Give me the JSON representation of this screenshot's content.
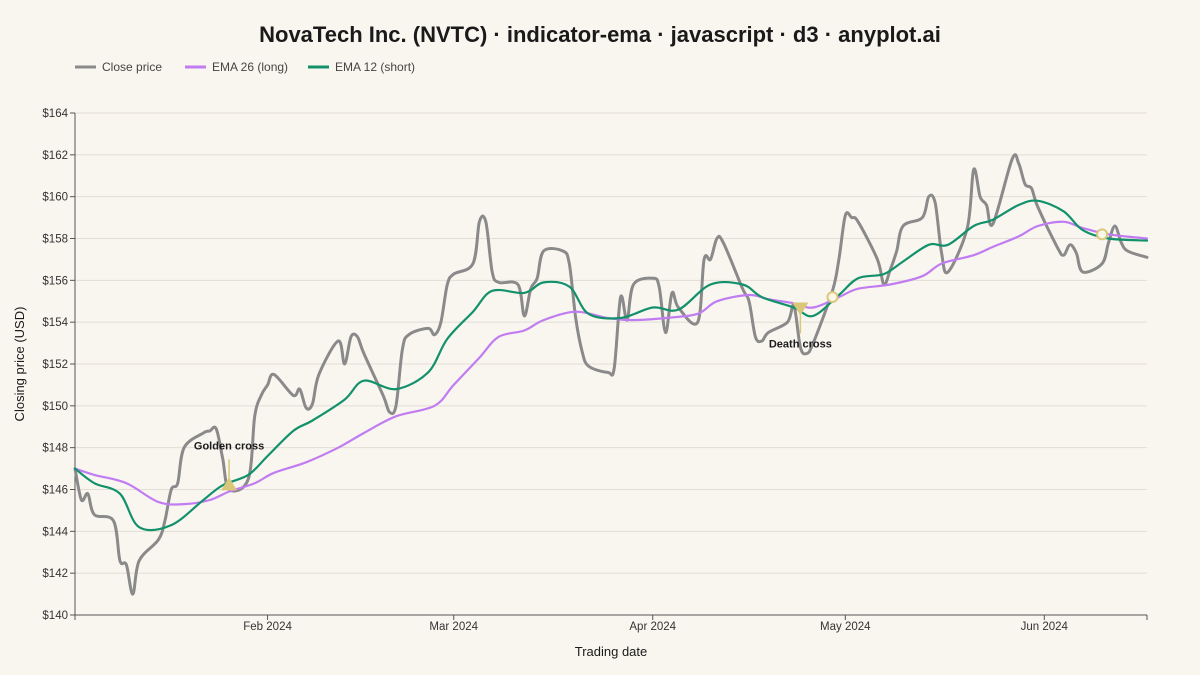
{
  "chart_data": {
    "type": "line",
    "title": "NovaTech Inc. (NVTC) · indicator-ema · javascript · d3 · anyplot.ai",
    "xlabel": "Trading date",
    "ylabel": "Closing price (USD)",
    "ylim": [
      140,
      164
    ],
    "y_ticks": [
      "$140",
      "$142",
      "$144",
      "$146",
      "$148",
      "$150",
      "$152",
      "$154",
      "$156",
      "$158",
      "$160",
      "$162",
      "$164"
    ],
    "x_ticks": [
      "Feb 2024",
      "Mar 2024",
      "Apr 2024",
      "May 2024",
      "Jun 2024"
    ],
    "xlim": [
      "2024-01-02",
      "2024-06-17"
    ],
    "grid": "horizontal",
    "legend_position": "top-left",
    "colors": {
      "close": "#8a8a8a",
      "ema26": "#c07cf0",
      "ema12": "#12916b",
      "marker": "#d9c77a"
    },
    "series": [
      {
        "name": "Close price",
        "key": "close",
        "points": [
          [
            "2024-01-02",
            147.0
          ],
          [
            "2024-01-03",
            145.5
          ],
          [
            "2024-01-04",
            145.8
          ],
          [
            "2024-01-05",
            144.8
          ],
          [
            "2024-01-08",
            144.5
          ],
          [
            "2024-01-09",
            142.6
          ],
          [
            "2024-01-10",
            142.4
          ],
          [
            "2024-01-11",
            141.0
          ],
          [
            "2024-01-12",
            142.6
          ],
          [
            "2024-01-15",
            143.6
          ],
          [
            "2024-01-16",
            144.5
          ],
          [
            "2024-01-17",
            146.0
          ],
          [
            "2024-01-18",
            146.3
          ],
          [
            "2024-01-19",
            148.0
          ],
          [
            "2024-01-22",
            148.7
          ],
          [
            "2024-01-23",
            148.8
          ],
          [
            "2024-01-24",
            148.9
          ],
          [
            "2024-01-25",
            147.5
          ],
          [
            "2024-01-26",
            146.0
          ],
          [
            "2024-01-29",
            146.5
          ],
          [
            "2024-01-30",
            149.5
          ],
          [
            "2024-01-31",
            150.5
          ],
          [
            "2024-02-01",
            151.0
          ],
          [
            "2024-02-02",
            151.5
          ],
          [
            "2024-02-05",
            150.5
          ],
          [
            "2024-02-06",
            150.8
          ],
          [
            "2024-02-07",
            149.9
          ],
          [
            "2024-02-08",
            150.1
          ],
          [
            "2024-02-09",
            151.5
          ],
          [
            "2024-02-12",
            153.1
          ],
          [
            "2024-02-13",
            152.0
          ],
          [
            "2024-02-14",
            153.3
          ],
          [
            "2024-02-15",
            153.3
          ],
          [
            "2024-02-16",
            152.5
          ],
          [
            "2024-02-19",
            150.5
          ],
          [
            "2024-02-20",
            149.7
          ],
          [
            "2024-02-21",
            150.0
          ],
          [
            "2024-02-22",
            152.7
          ],
          [
            "2024-02-23",
            153.4
          ],
          [
            "2024-02-26",
            153.7
          ],
          [
            "2024-02-27",
            153.4
          ],
          [
            "2024-02-28",
            154.0
          ],
          [
            "2024-02-29",
            155.8
          ],
          [
            "2024-03-01",
            156.3
          ],
          [
            "2024-03-04",
            156.8
          ],
          [
            "2024-03-05",
            158.8
          ],
          [
            "2024-03-06",
            158.8
          ],
          [
            "2024-03-07",
            156.4
          ],
          [
            "2024-03-08",
            155.9
          ],
          [
            "2024-03-11",
            155.8
          ],
          [
            "2024-03-12",
            154.3
          ],
          [
            "2024-03-13",
            155.6
          ],
          [
            "2024-03-14",
            156.1
          ],
          [
            "2024-03-15",
            157.4
          ],
          [
            "2024-03-18",
            157.4
          ],
          [
            "2024-03-19",
            156.8
          ],
          [
            "2024-03-20",
            154.2
          ],
          [
            "2024-03-21",
            152.6
          ],
          [
            "2024-03-22",
            151.9
          ],
          [
            "2024-03-25",
            151.6
          ],
          [
            "2024-03-26",
            151.8
          ],
          [
            "2024-03-27",
            155.2
          ],
          [
            "2024-03-28",
            154.1
          ],
          [
            "2024-03-29",
            155.8
          ],
          [
            "2024-04-01",
            156.1
          ],
          [
            "2024-04-02",
            155.7
          ],
          [
            "2024-04-03",
            153.5
          ],
          [
            "2024-04-04",
            155.4
          ],
          [
            "2024-04-05",
            154.7
          ],
          [
            "2024-04-08",
            154.0
          ],
          [
            "2024-04-09",
            157.0
          ],
          [
            "2024-04-10",
            157.0
          ],
          [
            "2024-04-11",
            158.0
          ],
          [
            "2024-04-12",
            157.8
          ],
          [
            "2024-04-15",
            155.6
          ],
          [
            "2024-04-16",
            155.0
          ],
          [
            "2024-04-17",
            153.3
          ],
          [
            "2024-04-18",
            153.1
          ],
          [
            "2024-04-19",
            153.5
          ],
          [
            "2024-04-22",
            154.0
          ],
          [
            "2024-04-23",
            154.8
          ],
          [
            "2024-04-24",
            152.8
          ],
          [
            "2024-04-25",
            152.5
          ],
          [
            "2024-04-26",
            153.0
          ],
          [
            "2024-04-29",
            155.5
          ],
          [
            "2024-04-30",
            157.0
          ],
          [
            "2024-05-01",
            159.1
          ],
          [
            "2024-05-02",
            159.0
          ],
          [
            "2024-05-03",
            158.8
          ],
          [
            "2024-05-06",
            157.0
          ],
          [
            "2024-05-07",
            155.8
          ],
          [
            "2024-05-08",
            156.5
          ],
          [
            "2024-05-09",
            157.4
          ],
          [
            "2024-05-10",
            158.6
          ],
          [
            "2024-05-13",
            159.0
          ],
          [
            "2024-05-14",
            160.0
          ],
          [
            "2024-05-15",
            159.7
          ],
          [
            "2024-05-16",
            157.3
          ],
          [
            "2024-05-17",
            156.4
          ],
          [
            "2024-05-20",
            158.5
          ],
          [
            "2024-05-21",
            161.3
          ],
          [
            "2024-05-22",
            160.0
          ],
          [
            "2024-05-23",
            159.6
          ],
          [
            "2024-05-24",
            158.7
          ],
          [
            "2024-05-27",
            161.8
          ],
          [
            "2024-05-28",
            161.6
          ],
          [
            "2024-05-29",
            160.6
          ],
          [
            "2024-05-30",
            160.4
          ],
          [
            "2024-05-31",
            159.5
          ],
          [
            "2024-06-03",
            157.6
          ],
          [
            "2024-06-04",
            157.2
          ],
          [
            "2024-06-05",
            157.7
          ],
          [
            "2024-06-06",
            157.3
          ],
          [
            "2024-06-07",
            156.4
          ],
          [
            "2024-06-10",
            156.8
          ],
          [
            "2024-06-11",
            157.8
          ],
          [
            "2024-06-12",
            158.6
          ],
          [
            "2024-06-13",
            157.8
          ],
          [
            "2024-06-14",
            157.4
          ],
          [
            "2024-06-17",
            157.1
          ]
        ]
      },
      {
        "name": "EMA 26 (long)",
        "key": "ema26",
        "points": [
          [
            "2024-01-02",
            147.0
          ],
          [
            "2024-01-05",
            146.7
          ],
          [
            "2024-01-10",
            146.3
          ],
          [
            "2024-01-15",
            145.4
          ],
          [
            "2024-01-19",
            145.3
          ],
          [
            "2024-01-23",
            145.5
          ],
          [
            "2024-01-26",
            145.9
          ],
          [
            "2024-01-30",
            146.3
          ],
          [
            "2024-02-02",
            146.8
          ],
          [
            "2024-02-07",
            147.3
          ],
          [
            "2024-02-12",
            148.0
          ],
          [
            "2024-02-16",
            148.7
          ],
          [
            "2024-02-21",
            149.5
          ],
          [
            "2024-02-27",
            150.0
          ],
          [
            "2024-03-01",
            151.0
          ],
          [
            "2024-03-05",
            152.3
          ],
          [
            "2024-03-08",
            153.3
          ],
          [
            "2024-03-12",
            153.6
          ],
          [
            "2024-03-15",
            154.1
          ],
          [
            "2024-03-20",
            154.5
          ],
          [
            "2024-03-25",
            154.2
          ],
          [
            "2024-03-29",
            154.1
          ],
          [
            "2024-04-03",
            154.2
          ],
          [
            "2024-04-08",
            154.4
          ],
          [
            "2024-04-11",
            155.0
          ],
          [
            "2024-04-16",
            155.3
          ],
          [
            "2024-04-19",
            155.1
          ],
          [
            "2024-04-23",
            154.9
          ],
          [
            "2024-04-26",
            154.7
          ],
          [
            "2024-04-30",
            155.2
          ],
          [
            "2024-05-03",
            155.6
          ],
          [
            "2024-05-08",
            155.8
          ],
          [
            "2024-05-13",
            156.2
          ],
          [
            "2024-05-16",
            156.8
          ],
          [
            "2024-05-21",
            157.2
          ],
          [
            "2024-05-24",
            157.6
          ],
          [
            "2024-05-28",
            158.1
          ],
          [
            "2024-05-31",
            158.6
          ],
          [
            "2024-06-04",
            158.8
          ],
          [
            "2024-06-07",
            158.5
          ],
          [
            "2024-06-11",
            158.2
          ],
          [
            "2024-06-17",
            158.0
          ]
        ]
      },
      {
        "name": "EMA 12 (short)",
        "key": "ema12",
        "points": [
          [
            "2024-01-02",
            147.0
          ],
          [
            "2024-01-05",
            146.3
          ],
          [
            "2024-01-09",
            145.8
          ],
          [
            "2024-01-12",
            144.2
          ],
          [
            "2024-01-17",
            144.3
          ],
          [
            "2024-01-22",
            145.5
          ],
          [
            "2024-01-25",
            146.2
          ],
          [
            "2024-01-29",
            146.7
          ],
          [
            "2024-02-01",
            147.6
          ],
          [
            "2024-02-05",
            148.8
          ],
          [
            "2024-02-08",
            149.3
          ],
          [
            "2024-02-13",
            150.3
          ],
          [
            "2024-02-16",
            151.2
          ],
          [
            "2024-02-21",
            150.8
          ],
          [
            "2024-02-26",
            151.6
          ],
          [
            "2024-02-29",
            153.2
          ],
          [
            "2024-03-04",
            154.5
          ],
          [
            "2024-03-07",
            155.5
          ],
          [
            "2024-03-12",
            155.4
          ],
          [
            "2024-03-15",
            155.9
          ],
          [
            "2024-03-19",
            155.7
          ],
          [
            "2024-03-22",
            154.4
          ],
          [
            "2024-03-27",
            154.2
          ],
          [
            "2024-04-01",
            154.7
          ],
          [
            "2024-04-05",
            154.6
          ],
          [
            "2024-04-10",
            155.8
          ],
          [
            "2024-04-15",
            155.8
          ],
          [
            "2024-04-18",
            155.2
          ],
          [
            "2024-04-23",
            154.7
          ],
          [
            "2024-04-26",
            154.3
          ],
          [
            "2024-04-30",
            155.3
          ],
          [
            "2024-05-03",
            156.1
          ],
          [
            "2024-05-07",
            156.3
          ],
          [
            "2024-05-10",
            156.9
          ],
          [
            "2024-05-14",
            157.7
          ],
          [
            "2024-05-17",
            157.7
          ],
          [
            "2024-05-21",
            158.6
          ],
          [
            "2024-05-24",
            158.9
          ],
          [
            "2024-05-28",
            159.6
          ],
          [
            "2024-05-31",
            159.8
          ],
          [
            "2024-06-04",
            159.3
          ],
          [
            "2024-06-07",
            158.4
          ],
          [
            "2024-06-11",
            158.0
          ],
          [
            "2024-06-17",
            157.9
          ]
        ]
      }
    ],
    "annotations": [
      {
        "label": "Golden cross",
        "type": "cross-up",
        "date": "2024-01-26",
        "value": 146.2
      },
      {
        "label": "Death cross",
        "type": "cross-down",
        "date": "2024-04-24",
        "value": 154.7
      }
    ],
    "crossover_markers": [
      {
        "date": "2024-04-29",
        "value": 155.2
      },
      {
        "date": "2024-06-10",
        "value": 158.2
      }
    ]
  }
}
